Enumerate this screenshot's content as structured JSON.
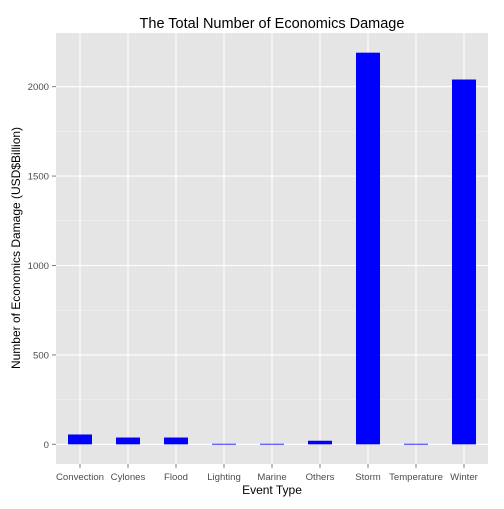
{
  "chart_data": {
    "type": "bar",
    "title": "The Total Number of Economics Damage",
    "xlabel": "Event Type",
    "ylabel": "Number of Economics Damage (USD$Billion)",
    "categories": [
      "Convection",
      "Cylones",
      "Flood",
      "Lighting",
      "Marine",
      "Others",
      "Storm",
      "Temperature",
      "Winter"
    ],
    "values": [
      55,
      38,
      38,
      3,
      3,
      20,
      2190,
      3,
      2040
    ],
    "yticks": [
      0,
      500,
      1000,
      1500,
      2000
    ],
    "ylim": [
      -110,
      2300
    ],
    "grid": true,
    "bar_color": "#0000ff",
    "panel_color": "#e5e5e5",
    "grid_color": "#ffffff"
  }
}
